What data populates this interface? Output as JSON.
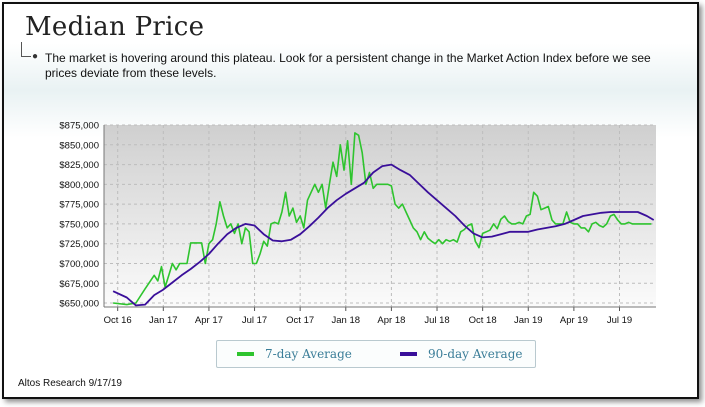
{
  "slide": {
    "title": "Median Price",
    "description": "The market is hovering around this plateau. Look for a persistent change in the Market Action Index before we see prices deviate from these levels.",
    "footer": "Altos Research 9/17/19"
  },
  "colors": {
    "series_7day": "#2ec42e",
    "series_90day": "#3a0f9a",
    "axis_text": "#111111",
    "grid": "#bdbdbd"
  },
  "chart_data": {
    "type": "line",
    "title": "Median Price",
    "xlabel": "",
    "ylabel": "",
    "ylim": [
      645000,
      875000
    ],
    "yticks": [
      650000,
      675000,
      700000,
      725000,
      750000,
      775000,
      800000,
      825000,
      850000,
      875000
    ],
    "ytick_labels": [
      "$650,000",
      "$675,000",
      "$700,000",
      "$725,000",
      "$750,000",
      "$775,000",
      "$800,000",
      "$825,000",
      "$850,000",
      "$875,000"
    ],
    "xlim": [
      -0.3,
      11.8
    ],
    "xticks": [
      0,
      1,
      2,
      3,
      4,
      5,
      6,
      7,
      8,
      9,
      10,
      11
    ],
    "xtick_labels": [
      "Oct 16",
      "Jan 17",
      "Apr 17",
      "Jul 17",
      "Oct 17",
      "Jan 18",
      "Apr 18",
      "Jul 18",
      "Oct 18",
      "Jan 19",
      "Apr 19",
      "Jul 19"
    ],
    "legend": "bottom-center",
    "grid": true,
    "series": [
      {
        "name": "7-day Average",
        "x": [
          -0.1,
          0.2,
          0.4,
          0.6,
          0.8,
          0.88,
          0.96,
          1.04,
          1.12,
          1.2,
          1.28,
          1.36,
          1.44,
          1.52,
          1.6,
          1.68,
          1.76,
          1.84,
          1.92,
          2.0,
          2.08,
          2.16,
          2.24,
          2.32,
          2.4,
          2.48,
          2.56,
          2.64,
          2.72,
          2.8,
          2.88,
          2.96,
          3.04,
          3.12,
          3.2,
          3.28,
          3.36,
          3.44,
          3.52,
          3.6,
          3.68,
          3.76,
          3.84,
          3.92,
          4.0,
          4.08,
          4.16,
          4.24,
          4.32,
          4.4,
          4.48,
          4.56,
          4.64,
          4.72,
          4.8,
          4.88,
          4.96,
          5.04,
          5.12,
          5.2,
          5.28,
          5.36,
          5.44,
          5.52,
          5.6,
          5.68,
          5.76,
          5.84,
          5.92,
          6.0,
          6.08,
          6.16,
          6.24,
          6.32,
          6.4,
          6.48,
          6.56,
          6.64,
          6.72,
          6.8,
          6.88,
          6.96,
          7.04,
          7.12,
          7.2,
          7.28,
          7.36,
          7.44,
          7.52,
          7.6,
          7.68,
          7.76,
          7.84,
          7.92,
          8.0,
          8.08,
          8.16,
          8.24,
          8.32,
          8.4,
          8.48,
          8.56,
          8.64,
          8.72,
          8.8,
          8.88,
          8.96,
          9.04,
          9.12,
          9.2,
          9.28,
          9.36,
          9.44,
          9.52,
          9.6,
          9.68,
          9.76,
          9.84,
          9.92,
          10.0,
          10.08,
          10.16,
          10.24,
          10.32,
          10.4,
          10.48,
          10.56,
          10.64,
          10.72,
          10.8,
          10.88,
          10.96,
          11.04,
          11.12,
          11.2,
          11.28,
          11.36,
          11.44,
          11.52,
          11.6,
          11.7
        ],
        "y": [
          650000,
          648000,
          650000,
          668000,
          685000,
          678000,
          696000,
          670000,
          685000,
          700000,
          692000,
          700000,
          700000,
          700000,
          726000,
          726000,
          726000,
          726000,
          700000,
          725000,
          730000,
          750000,
          778000,
          760000,
          745000,
          750000,
          738000,
          750000,
          725000,
          745000,
          740000,
          700000,
          700000,
          712000,
          728000,
          722000,
          750000,
          752000,
          750000,
          765000,
          790000,
          760000,
          770000,
          752000,
          760000,
          745000,
          780000,
          790000,
          800000,
          790000,
          800000,
          770000,
          800000,
          828000,
          810000,
          850000,
          818000,
          855000,
          800000,
          865000,
          862000,
          840000,
          800000,
          815000,
          795000,
          800000,
          800000,
          800000,
          800000,
          798000,
          775000,
          770000,
          775000,
          765000,
          755000,
          745000,
          740000,
          730000,
          740000,
          732000,
          728000,
          725000,
          730000,
          725000,
          730000,
          728000,
          730000,
          727000,
          740000,
          743000,
          748000,
          750000,
          728000,
          720000,
          738000,
          740000,
          742000,
          750000,
          744000,
          756000,
          760000,
          753000,
          750000,
          750000,
          752000,
          750000,
          760000,
          762000,
          790000,
          785000,
          768000,
          770000,
          772000,
          755000,
          750000,
          750000,
          750000,
          765000,
          752000,
          750000,
          750000,
          745000,
          745000,
          740000,
          750000,
          752000,
          748000,
          746000,
          750000,
          760000,
          762000,
          755000,
          750000,
          750000,
          752000,
          750000,
          750000,
          750000,
          750000,
          750000,
          750000
        ],
        "color": "#2ec42e"
      },
      {
        "name": "90-day Average",
        "x": [
          -0.1,
          0.2,
          0.4,
          0.6,
          0.8,
          1.0,
          1.2,
          1.4,
          1.6,
          1.8,
          2.0,
          2.2,
          2.4,
          2.6,
          2.8,
          3.0,
          3.2,
          3.4,
          3.6,
          3.8,
          4.0,
          4.2,
          4.4,
          4.6,
          4.8,
          5.0,
          5.2,
          5.4,
          5.6,
          5.8,
          6.0,
          6.2,
          6.4,
          6.6,
          6.8,
          7.0,
          7.2,
          7.4,
          7.6,
          7.8,
          8.0,
          8.2,
          8.4,
          8.6,
          8.8,
          9.0,
          9.2,
          9.4,
          9.6,
          9.8,
          10.0,
          10.2,
          10.4,
          10.6,
          10.8,
          11.0,
          11.2,
          11.4,
          11.6,
          11.75
        ],
        "y": [
          665000,
          657000,
          647000,
          648000,
          660000,
          667000,
          676000,
          685000,
          693000,
          702000,
          712000,
          725000,
          737000,
          745000,
          750000,
          748000,
          737000,
          729000,
          728000,
          730000,
          737000,
          747000,
          758000,
          770000,
          780000,
          788000,
          795000,
          802000,
          815000,
          823000,
          825000,
          818000,
          812000,
          801000,
          790000,
          780000,
          770000,
          760000,
          748000,
          738000,
          733000,
          734000,
          737000,
          740000,
          740000,
          740000,
          743000,
          745000,
          747000,
          750000,
          755000,
          760000,
          762000,
          764000,
          765000,
          765000,
          765000,
          765000,
          760000,
          755000
        ],
        "color": "#3a0f9a"
      }
    ]
  }
}
